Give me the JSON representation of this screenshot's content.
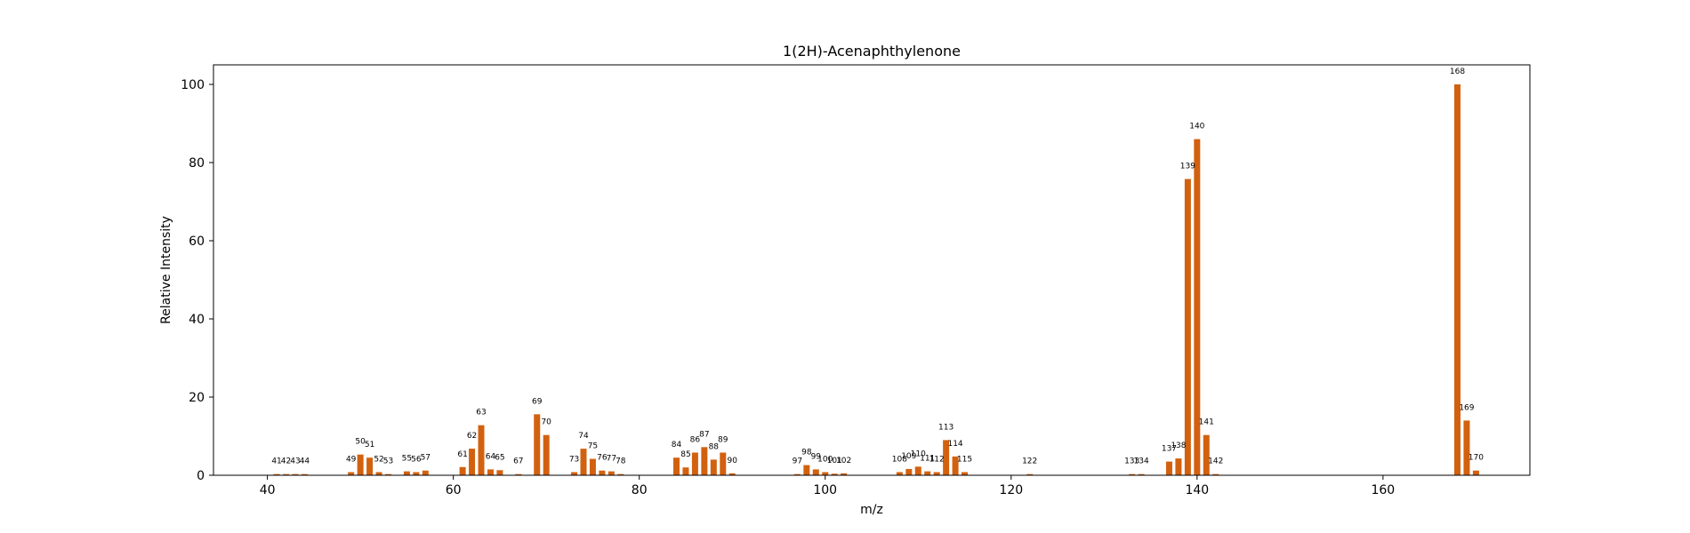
{
  "chart_data": {
    "type": "bar",
    "title": "1(2H)-Acenaphthylenone",
    "xlabel": "m/z",
    "ylabel": "Relative Intensity",
    "xlim": [
      34.2,
      175.8
    ],
    "ylim": [
      0,
      105
    ],
    "x_ticks": [
      40,
      60,
      80,
      100,
      120,
      140,
      160
    ],
    "y_ticks": [
      0,
      20,
      40,
      60,
      80,
      100
    ],
    "grid": false,
    "bar_color": "#d2610f",
    "series": [
      {
        "x": [
          41,
          42,
          43,
          44,
          49,
          50,
          51,
          52,
          53,
          55,
          56,
          57,
          61,
          62,
          63,
          64,
          65,
          67,
          69,
          70,
          73,
          74,
          75,
          76,
          77,
          78,
          84,
          85,
          86,
          87,
          88,
          89,
          90,
          97,
          98,
          99,
          100,
          101,
          102,
          108,
          109,
          110,
          111,
          112,
          113,
          114,
          115,
          122,
          133,
          134,
          137,
          138,
          139,
          140,
          141,
          142,
          168,
          169,
          170
        ],
        "y": [
          0.3,
          0.3,
          0.3,
          0.3,
          0.8,
          5.3,
          4.5,
          0.8,
          0.3,
          1.0,
          0.8,
          1.2,
          2.1,
          6.8,
          12.8,
          1.5,
          1.3,
          0.3,
          15.6,
          10.3,
          0.8,
          6.8,
          4.2,
          1.2,
          1.0,
          0.3,
          4.5,
          2.0,
          5.8,
          7.2,
          4.0,
          5.8,
          0.5,
          0.3,
          2.6,
          1.5,
          0.8,
          0.4,
          0.5,
          0.8,
          1.6,
          2.2,
          1.0,
          0.8,
          9.0,
          4.8,
          0.8,
          0.3,
          0.3,
          0.3,
          3.5,
          4.3,
          75.8,
          86.0,
          10.3,
          0.3,
          100.0,
          14.0,
          1.2
        ]
      }
    ]
  }
}
